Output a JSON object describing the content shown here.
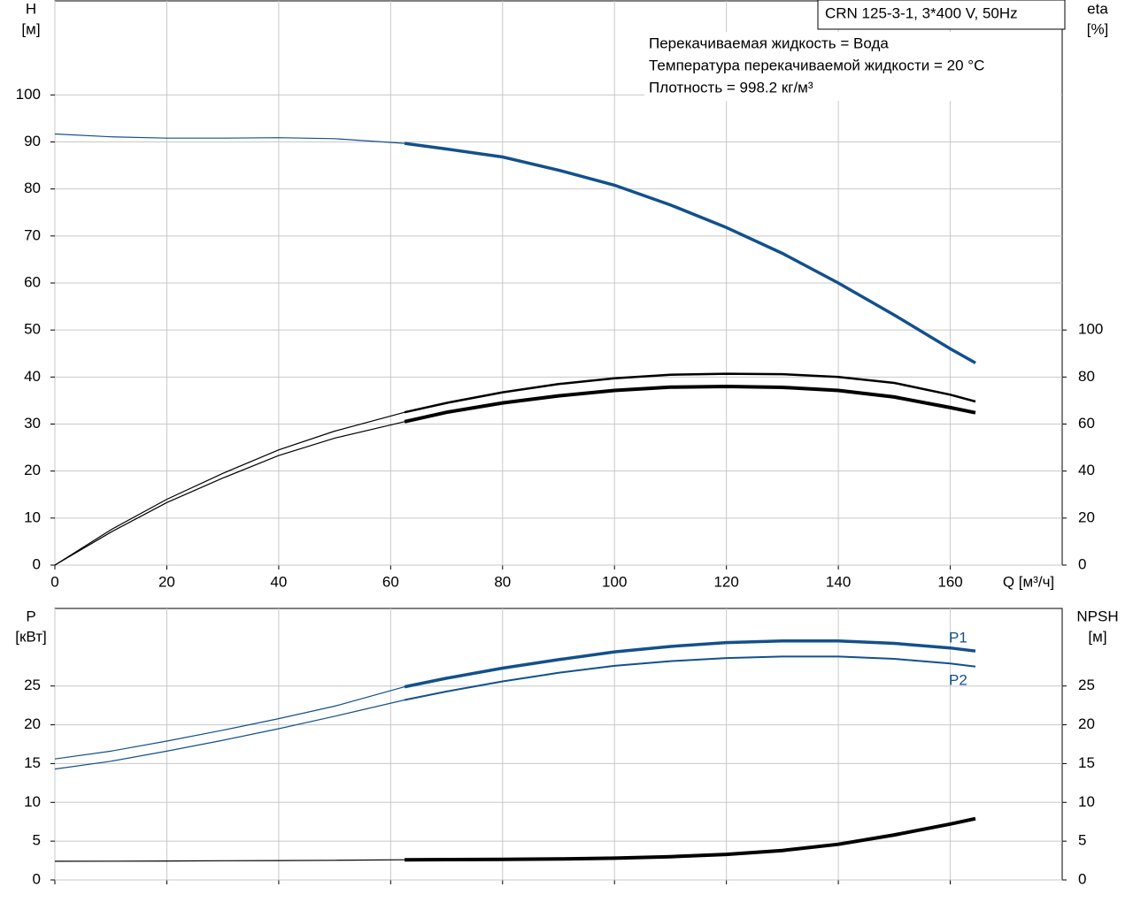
{
  "chart_data": [
    {
      "type": "line",
      "title": "CRN 125-3-1, 3*400 V, 50Hz",
      "notes": [
        "Перекачиваемая жидкость = Вода",
        "Температура перекачиваемой жидкости = 20 °C",
        "Плотность = 998.2 кг/м³"
      ],
      "y_label": [
        "H",
        "[м]"
      ],
      "y2_label": [
        "eta",
        "[%]"
      ],
      "x_label": "Q [м³/ч]",
      "x": [
        0,
        10,
        20,
        30,
        40,
        50,
        62.5,
        70,
        80,
        90,
        100,
        110,
        120,
        130,
        140,
        150,
        160,
        164.5
      ],
      "xlim": [
        0,
        180
      ],
      "xticks": [
        0,
        20,
        40,
        60,
        80,
        100,
        120,
        140,
        160
      ],
      "ylim": [
        0,
        120
      ],
      "yticks": [
        0,
        10,
        20,
        30,
        40,
        50,
        60,
        70,
        80,
        90,
        100
      ],
      "y2lim": [
        0,
        240
      ],
      "y2ticks": [
        0,
        20,
        40,
        60,
        80,
        100
      ],
      "grid": true,
      "x_tick_labels": true,
      "bold_xlim": [
        62.5,
        164.5
      ],
      "series": [
        {
          "color": "#12508c",
          "width": 3.5,
          "values": [
            91.7,
            91.1,
            90.8,
            90.8,
            90.9,
            90.7,
            89.7,
            88.5,
            86.8,
            84.0,
            80.8,
            76.6,
            71.8,
            66.3,
            60.0,
            53.2,
            46.0,
            43.0
          ]
        },
        {
          "color": "#000000",
          "width": 2.5,
          "axis": "y2",
          "values": [
            0,
            15,
            28,
            39,
            49,
            57,
            65,
            69,
            73.5,
            77,
            79.5,
            81,
            81.4,
            81.2,
            80,
            77.5,
            72.5,
            69.6
          ]
        },
        {
          "color": "#000000",
          "width": 4,
          "axis": "y2",
          "values": [
            0,
            14,
            26.6,
            37,
            46.6,
            54,
            61,
            65,
            69,
            72,
            74.3,
            75.7,
            76,
            75.6,
            74.3,
            71.5,
            67,
            64.8
          ]
        }
      ]
    },
    {
      "type": "line",
      "y_label": [
        "P",
        "[кВт]"
      ],
      "y2_label": [
        "NPSH",
        "[м]"
      ],
      "x": [
        0,
        10,
        20,
        30,
        40,
        50,
        62.5,
        70,
        80,
        90,
        100,
        110,
        120,
        130,
        140,
        150,
        160,
        164.5
      ],
      "xlim": [
        0,
        180
      ],
      "xticks": [
        0,
        20,
        40,
        60,
        80,
        100,
        120,
        140,
        160
      ],
      "ylim": [
        0,
        35
      ],
      "yticks": [
        0,
        5,
        10,
        15,
        20,
        25
      ],
      "y2lim": [
        0,
        35
      ],
      "y2ticks": [
        0,
        5,
        10,
        15,
        20,
        25
      ],
      "grid": true,
      "x_tick_labels": false,
      "bold_xlim": [
        62.5,
        164.5
      ],
      "series": [
        {
          "name": "P1",
          "color": "#12508c",
          "width": 3.5,
          "values": [
            15.6,
            16.6,
            17.9,
            19.3,
            20.8,
            22.4,
            24.9,
            26.0,
            27.3,
            28.4,
            29.4,
            30.1,
            30.6,
            30.8,
            30.8,
            30.5,
            29.9,
            29.5
          ]
        },
        {
          "name": "P2",
          "color": "#12508c",
          "width": 2,
          "values": [
            14.3,
            15.3,
            16.6,
            18.0,
            19.5,
            21.1,
            23.2,
            24.3,
            25.6,
            26.7,
            27.6,
            28.2,
            28.6,
            28.8,
            28.8,
            28.5,
            27.9,
            27.5
          ]
        },
        {
          "color": "#000000",
          "width": 4,
          "axis": "y2",
          "values": [
            2.4,
            2.42,
            2.44,
            2.47,
            2.5,
            2.53,
            2.6,
            2.62,
            2.65,
            2.7,
            2.8,
            3.0,
            3.3,
            3.8,
            4.6,
            5.8,
            7.2,
            7.9
          ]
        }
      ]
    }
  ]
}
